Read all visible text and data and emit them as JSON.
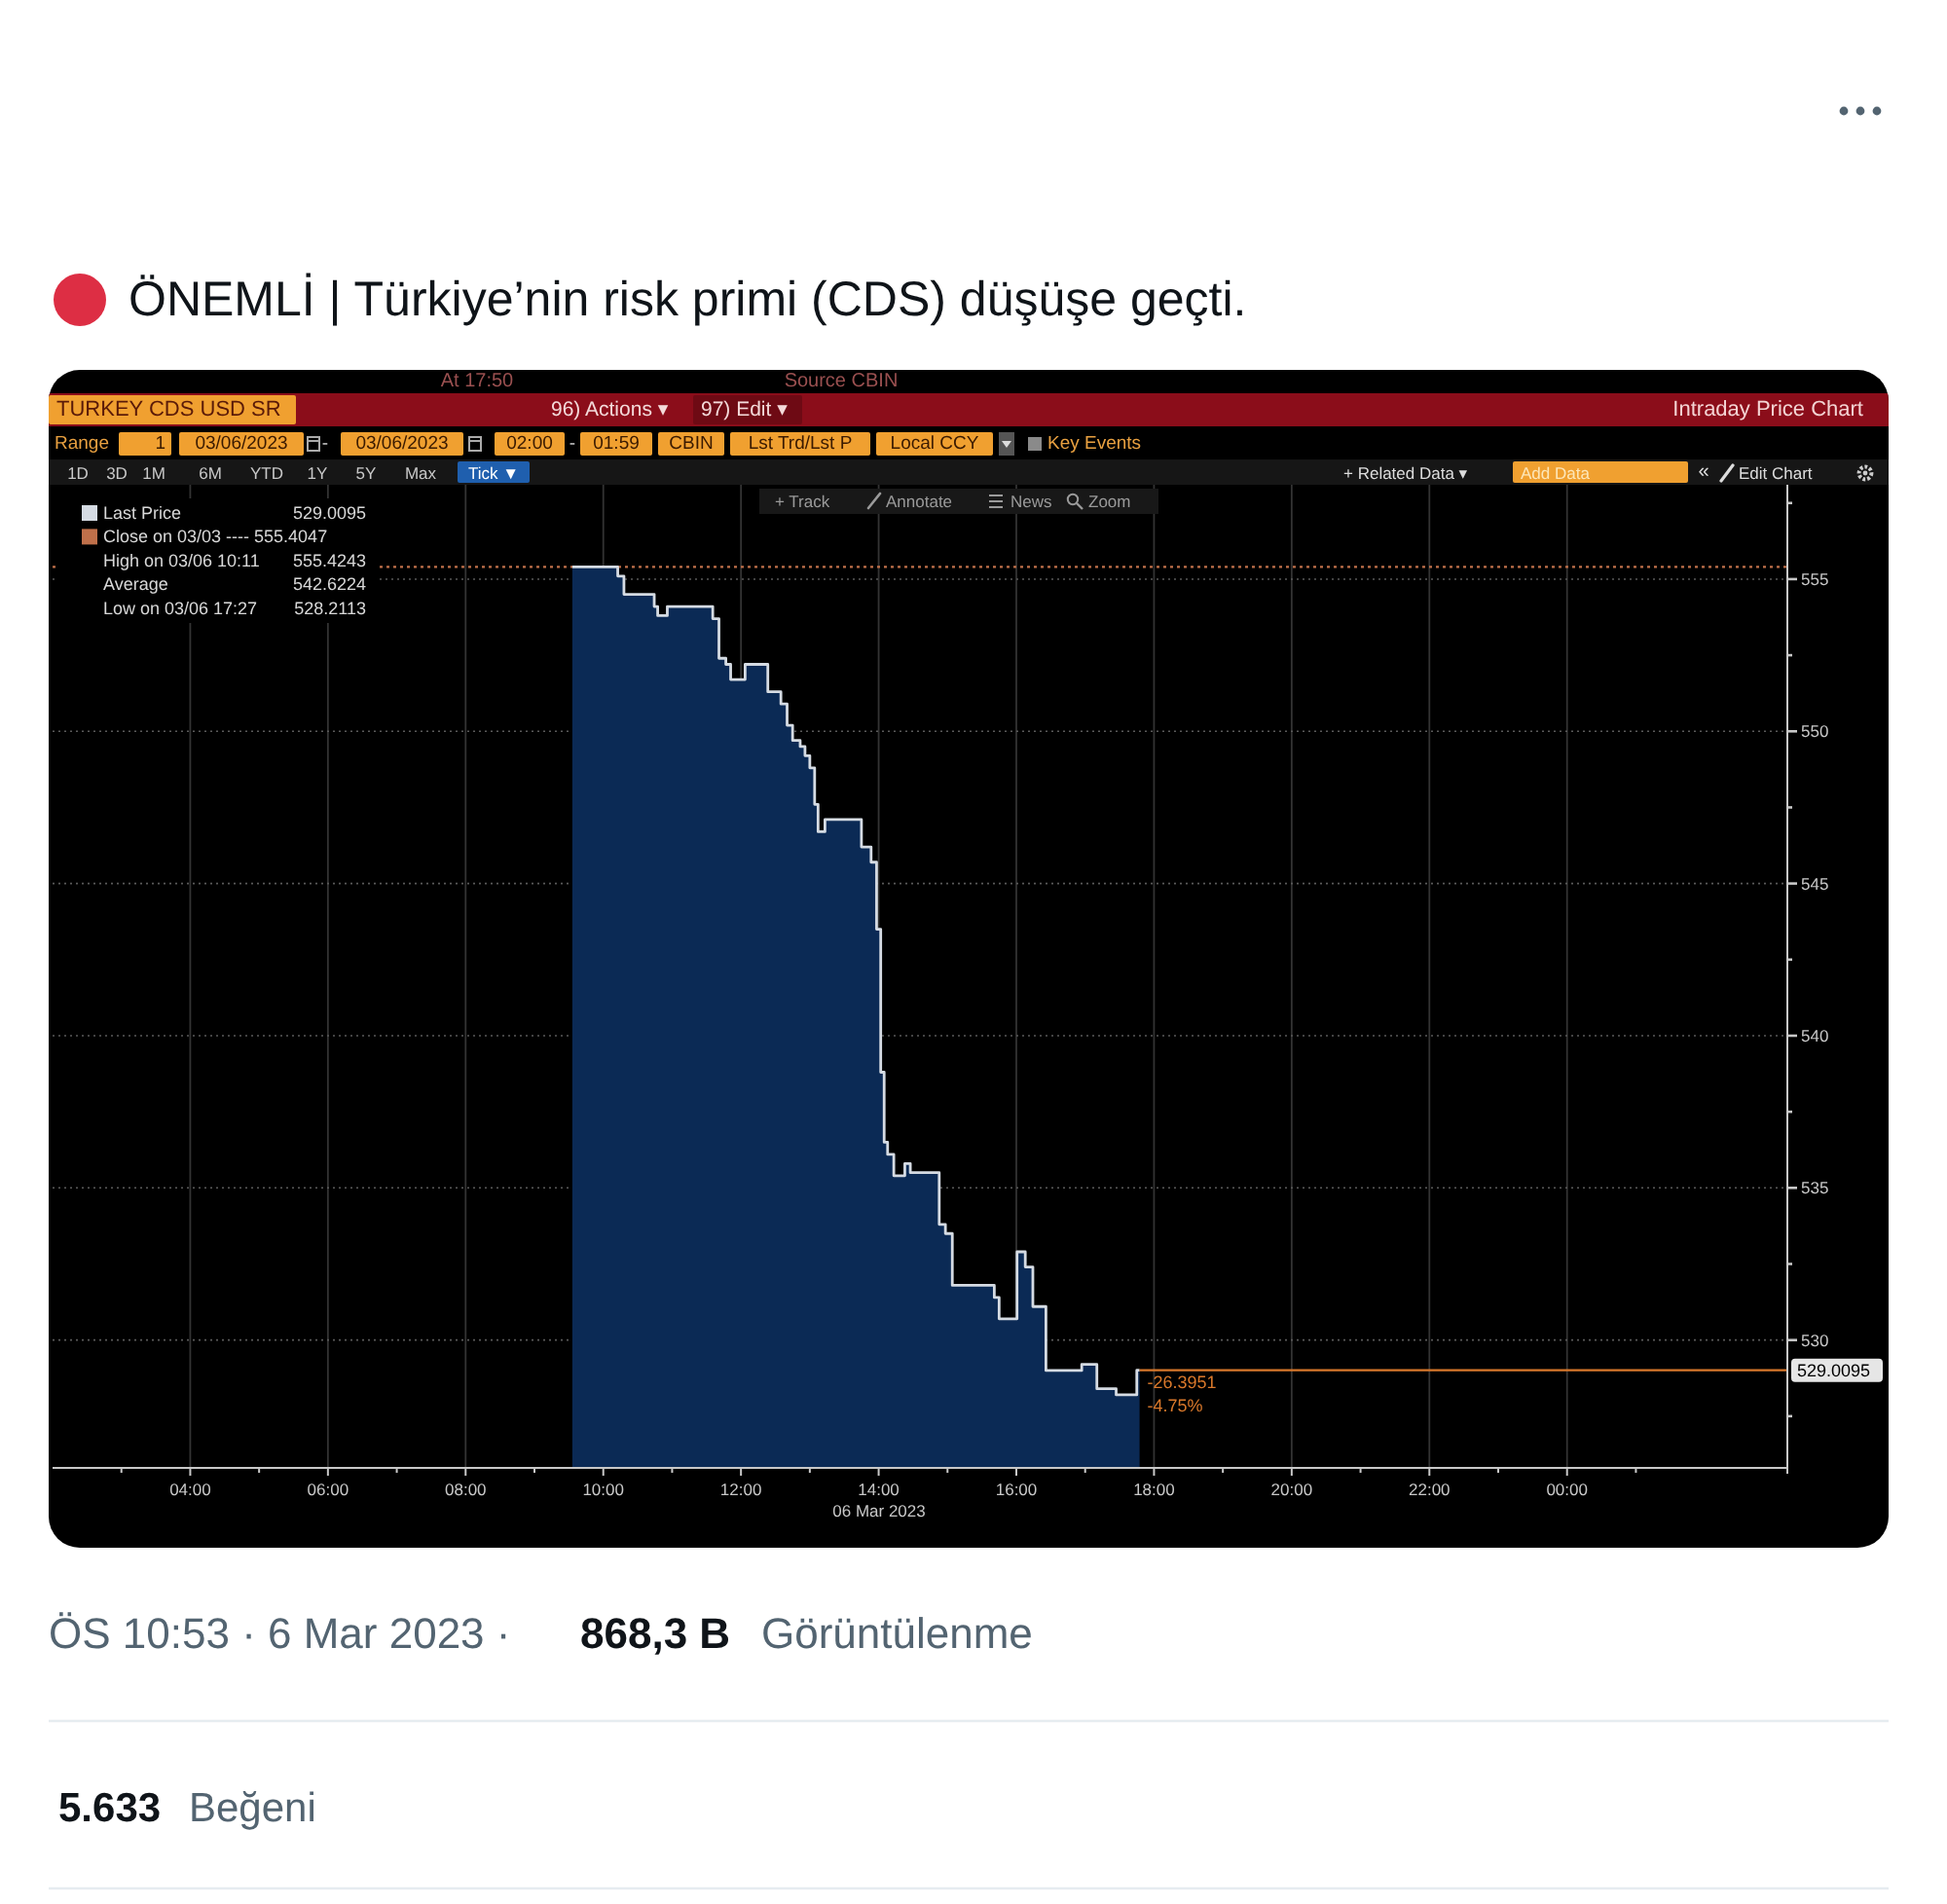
{
  "chart_data": {
    "type": "area",
    "title": "ÖNEMLİ | Türkiye’nin risk primi (CDS) düşüşe geçti.",
    "xlabel": "06 Mar 2023",
    "x": [
      9.55,
      10.21,
      10.21,
      10.3,
      10.3,
      10.74,
      10.74,
      10.79,
      10.79,
      10.93,
      10.93,
      11.59,
      11.59,
      11.68,
      11.68,
      11.78,
      11.78,
      11.85,
      11.85,
      12.06,
      12.06,
      12.39,
      12.39,
      12.58,
      12.58,
      12.67,
      12.67,
      12.75,
      12.75,
      12.86,
      12.86,
      12.93,
      12.93,
      13.0,
      13.0,
      13.07,
      13.07,
      13.12,
      13.12,
      13.22,
      13.22,
      13.75,
      13.75,
      13.89,
      13.89,
      13.97,
      13.97,
      14.03,
      14.03,
      14.08,
      14.08,
      14.13,
      14.13,
      14.22,
      14.22,
      14.38,
      14.38,
      14.46,
      14.46,
      14.88,
      14.88,
      14.97,
      14.97,
      15.07,
      15.07,
      15.68,
      15.68,
      15.75,
      15.75,
      16.01,
      16.01,
      16.13,
      16.13,
      16.24,
      16.24,
      16.43,
      16.43,
      16.95,
      16.95,
      17.17,
      17.17,
      17.45,
      17.45,
      17.75,
      17.75,
      17.79
    ],
    "series": [
      {
        "name": "Last Price",
        "color": "#d5dbe3",
        "values": [
          555.4,
          555.4,
          555.1,
          555.1,
          554.5,
          554.5,
          554.1,
          554.1,
          553.8,
          553.8,
          554.1,
          554.1,
          553.7,
          553.7,
          552.4,
          552.4,
          552.2,
          552.2,
          551.7,
          551.7,
          552.2,
          552.2,
          551.3,
          551.3,
          550.9,
          550.9,
          550.2,
          550.2,
          549.7,
          549.7,
          549.5,
          549.5,
          549.2,
          549.2,
          548.8,
          548.8,
          547.6,
          547.6,
          546.7,
          546.7,
          547.1,
          547.1,
          546.2,
          546.2,
          545.7,
          545.7,
          543.5,
          543.5,
          538.8,
          538.8,
          536.5,
          536.5,
          536.1,
          536.1,
          535.4,
          535.4,
          535.8,
          535.8,
          535.5,
          535.5,
          533.8,
          533.8,
          533.5,
          533.5,
          531.8,
          531.8,
          531.4,
          531.4,
          530.7,
          530.7,
          532.9,
          532.9,
          532.4,
          532.4,
          531.1,
          531.1,
          529.0,
          529.0,
          529.2,
          529.2,
          528.4,
          528.4,
          528.2,
          528.2,
          529.0095,
          529.0095
        ],
        "value_labels": [
          null,
          null,
          null,
          null,
          null,
          null,
          null,
          null,
          null,
          null,
          null,
          null,
          null,
          null,
          null,
          null,
          null,
          null,
          null,
          null,
          null,
          null,
          null,
          null,
          null,
          null,
          null,
          null,
          null,
          null,
          null,
          null,
          null,
          null,
          null,
          null,
          null,
          null,
          null,
          null,
          null,
          null,
          null,
          null,
          null,
          null,
          null,
          null,
          null,
          null,
          null,
          null,
          null,
          null,
          null,
          null,
          null,
          null,
          null,
          null,
          null,
          null,
          null,
          null,
          null,
          null,
          null,
          null,
          null,
          null,
          null,
          null,
          null,
          null,
          null,
          null,
          null,
          null,
          null,
          null,
          null,
          null,
          null,
          null,
          null,
          "529.0095"
        ]
      }
    ],
    "xlim": [
      2,
      27.2
    ],
    "xticks": [
      {
        "value": 3,
        "label": null
      },
      {
        "value": 4,
        "label": "04:00"
      },
      {
        "value": 5,
        "label": null
      },
      {
        "value": 6,
        "label": "06:00"
      },
      {
        "value": 7,
        "label": null
      },
      {
        "value": 8,
        "label": "08:00"
      },
      {
        "value": 9,
        "label": null
      },
      {
        "value": 10,
        "label": "10:00"
      },
      {
        "value": 11,
        "label": null
      },
      {
        "value": 12,
        "label": "12:00"
      },
      {
        "value": 13,
        "label": null
      },
      {
        "value": 14,
        "label": "14:00"
      },
      {
        "value": 15,
        "label": null
      },
      {
        "value": 16,
        "label": "16:00"
      },
      {
        "value": 17,
        "label": null
      },
      {
        "value": 18,
        "label": "18:00"
      },
      {
        "value": 19,
        "label": null
      },
      {
        "value": 20,
        "label": "20:00"
      },
      {
        "value": 21,
        "label": null
      },
      {
        "value": 22,
        "label": "22:00"
      },
      {
        "value": 23,
        "label": null
      },
      {
        "value": 24,
        "label": "00:00"
      },
      {
        "value": 25,
        "label": null
      }
    ],
    "ylim": [
      525.8,
      558.1
    ],
    "yticks": [
      {
        "value": 527.5,
        "label": null
      },
      530,
      {
        "value": 532.5,
        "label": null
      },
      535,
      {
        "value": 537.5,
        "label": null
      },
      540,
      {
        "value": 542.5,
        "label": null
      },
      545,
      {
        "value": 547.5,
        "label": null
      },
      550,
      {
        "value": 552.5,
        "label": null
      },
      555,
      {
        "value": 557.5,
        "label": null
      }
    ],
    "grid": true,
    "legend": "top left",
    "ref_lines": [
      {
        "axis": "y",
        "value": 555.4047,
        "label": "Close on 03/03 ---- 555.4047",
        "color": "#c0704a",
        "line_style": "dotted"
      }
    ],
    "annotations": [
      "High on 03/06 10:11 555.4243",
      "Average 542.6224",
      "Low on 03/06 17:27 528.2113",
      {
        "text": "-26.3951",
        "x": 17.79,
        "y": 529.0095
      },
      {
        "text": "-4.75%",
        "x": 17.79,
        "y": 529.0095
      },
      "At 17:50",
      "Source CBIN",
      "TURKEY CDS USD SR",
      "96) Actions ▾",
      "97) Edit ▾",
      "Intraday Price Chart",
      "Range",
      "1",
      "03/06/2023",
      "-",
      "03/06/2023",
      "02:00",
      "-",
      "01:59",
      "CBIN",
      "Lst Trd/Lst P",
      "Local CCY",
      "Key Events",
      "1D",
      "3D",
      "1M",
      "6M",
      "YTD",
      "1Y",
      "5Y",
      "Max",
      "Tick ▼",
      "+ Related Data ▾",
      "Add Data",
      "«",
      "Edit Chart",
      "+ Track",
      "Annotate",
      "News",
      "Zoom",
      "ÖS 10:53 · 6 Mar 2023 ·",
      "868,3 B",
      "Görüntülenme",
      "5.633",
      "Beğeni"
    ]
  }
}
